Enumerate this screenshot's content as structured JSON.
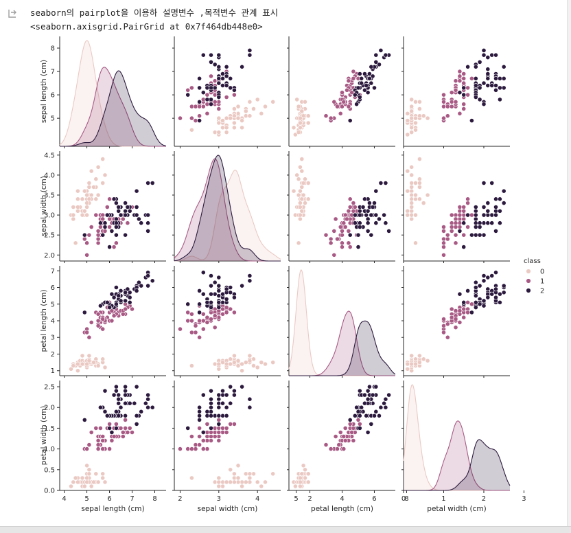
{
  "output": {
    "line1": "seaborn의 pairplot을 이용하 설명변수 ,목적변수 관계 표시",
    "line2": "<seaborn.axisgrid.PairGrid at 0x7f464db448e0>"
  },
  "chart_data": {
    "type": "scatter",
    "title": "",
    "variables": [
      "sepal length (cm)",
      "sepal width (cm)",
      "petal length (cm)",
      "petal width (cm)"
    ],
    "ranges": [
      [
        3.8,
        8.5
      ],
      [
        1.85,
        4.6
      ],
      [
        0.7,
        7.3
      ],
      [
        0.0,
        2.65
      ]
    ],
    "axis_ticks": [
      {
        "values": [
          4,
          5,
          6,
          7,
          8
        ],
        "labels": [
          "4",
          "5",
          "6",
          "7",
          "8"
        ]
      },
      {
        "values": [
          2,
          3,
          4,
          5
        ],
        "labels": [
          "2",
          "3",
          "4",
          "5"
        ]
      },
      {
        "values": [
          2,
          4,
          6,
          8
        ],
        "labels": [
          "2",
          "4",
          "6",
          "8"
        ]
      },
      {
        "values": [
          0,
          1,
          2,
          3
        ],
        "labels": [
          "0",
          "1",
          "2",
          "3"
        ]
      }
    ],
    "row_ticks": [
      {
        "values": [
          5,
          6,
          7,
          8
        ],
        "labels": [
          "5",
          "6",
          "7",
          "8"
        ]
      },
      {
        "values": [
          2.0,
          2.5,
          3.0,
          3.5,
          4.0,
          4.5
        ],
        "labels": [
          "2.0",
          "2.5",
          "3.0",
          "3.5",
          "4.0",
          "4.5"
        ]
      },
      {
        "values": [
          1,
          2,
          3,
          4,
          5,
          6,
          7
        ],
        "labels": [
          "1",
          "2",
          "3",
          "4",
          "5",
          "6",
          "7"
        ]
      },
      {
        "values": [
          0.0,
          0.5,
          1.0,
          1.5,
          2.0,
          2.5
        ],
        "labels": [
          "0.0",
          "0.5",
          "1.0",
          "1.5",
          "2.0",
          "2.5"
        ]
      }
    ],
    "legend": {
      "title": "class",
      "entries": [
        "0",
        "1",
        "2"
      ],
      "position": "right"
    },
    "colors": {
      "0": "#ebc9c3",
      "1": "#a85a85",
      "2": "#2c1a3e"
    },
    "fill_opacity": 0.22,
    "kde_bandwidth": [
      0.26,
      0.14,
      0.28,
      0.12
    ],
    "series": [
      {
        "name": "0",
        "points": [
          [
            5.1,
            3.5,
            1.4,
            0.2
          ],
          [
            4.9,
            3.0,
            1.4,
            0.2
          ],
          [
            4.7,
            3.2,
            1.3,
            0.2
          ],
          [
            4.6,
            3.1,
            1.5,
            0.2
          ],
          [
            5.0,
            3.6,
            1.4,
            0.2
          ],
          [
            5.4,
            3.9,
            1.7,
            0.4
          ],
          [
            4.6,
            3.4,
            1.4,
            0.3
          ],
          [
            5.0,
            3.4,
            1.5,
            0.2
          ],
          [
            4.4,
            2.9,
            1.4,
            0.2
          ],
          [
            4.9,
            3.1,
            1.5,
            0.1
          ],
          [
            5.4,
            3.7,
            1.5,
            0.2
          ],
          [
            4.8,
            3.4,
            1.6,
            0.2
          ],
          [
            4.8,
            3.0,
            1.4,
            0.1
          ],
          [
            4.3,
            3.0,
            1.1,
            0.1
          ],
          [
            5.8,
            4.0,
            1.2,
            0.2
          ],
          [
            5.7,
            4.4,
            1.5,
            0.4
          ],
          [
            5.4,
            3.9,
            1.3,
            0.4
          ],
          [
            5.1,
            3.5,
            1.4,
            0.3
          ],
          [
            5.7,
            3.8,
            1.7,
            0.3
          ],
          [
            5.1,
            3.8,
            1.5,
            0.3
          ],
          [
            5.4,
            3.4,
            1.7,
            0.2
          ],
          [
            5.1,
            3.7,
            1.5,
            0.4
          ],
          [
            4.6,
            3.6,
            1.0,
            0.2
          ],
          [
            5.1,
            3.3,
            1.7,
            0.5
          ],
          [
            4.8,
            3.4,
            1.9,
            0.2
          ],
          [
            5.0,
            3.0,
            1.6,
            0.2
          ],
          [
            5.0,
            3.4,
            1.6,
            0.4
          ],
          [
            5.2,
            3.5,
            1.5,
            0.2
          ],
          [
            5.2,
            3.4,
            1.4,
            0.2
          ],
          [
            4.7,
            3.2,
            1.6,
            0.2
          ],
          [
            4.8,
            3.1,
            1.6,
            0.2
          ],
          [
            5.4,
            3.4,
            1.5,
            0.4
          ],
          [
            5.2,
            4.1,
            1.5,
            0.1
          ],
          [
            5.5,
            4.2,
            1.4,
            0.2
          ],
          [
            4.9,
            3.1,
            1.5,
            0.2
          ],
          [
            5.0,
            3.2,
            1.2,
            0.2
          ],
          [
            5.5,
            3.5,
            1.3,
            0.2
          ],
          [
            4.9,
            3.6,
            1.4,
            0.1
          ],
          [
            4.4,
            3.0,
            1.3,
            0.2
          ],
          [
            5.1,
            3.4,
            1.5,
            0.2
          ],
          [
            5.0,
            3.5,
            1.3,
            0.3
          ],
          [
            4.5,
            2.3,
            1.3,
            0.3
          ],
          [
            4.4,
            3.2,
            1.3,
            0.2
          ],
          [
            5.0,
            3.5,
            1.6,
            0.6
          ],
          [
            5.1,
            3.8,
            1.9,
            0.4
          ],
          [
            4.8,
            3.0,
            1.4,
            0.3
          ],
          [
            5.1,
            3.8,
            1.6,
            0.2
          ],
          [
            4.6,
            3.2,
            1.4,
            0.2
          ],
          [
            5.3,
            3.7,
            1.5,
            0.2
          ],
          [
            5.0,
            3.3,
            1.4,
            0.2
          ]
        ]
      },
      {
        "name": "1",
        "points": [
          [
            7.0,
            3.2,
            4.7,
            1.4
          ],
          [
            6.4,
            3.2,
            4.5,
            1.5
          ],
          [
            6.9,
            3.1,
            4.9,
            1.5
          ],
          [
            5.5,
            2.3,
            4.0,
            1.3
          ],
          [
            6.5,
            2.8,
            4.6,
            1.5
          ],
          [
            5.7,
            2.8,
            4.5,
            1.3
          ],
          [
            6.3,
            3.3,
            4.7,
            1.6
          ],
          [
            4.9,
            2.4,
            3.3,
            1.0
          ],
          [
            6.6,
            2.9,
            4.6,
            1.3
          ],
          [
            5.2,
            2.7,
            3.9,
            1.4
          ],
          [
            5.0,
            2.0,
            3.5,
            1.0
          ],
          [
            5.9,
            3.0,
            4.2,
            1.5
          ],
          [
            6.0,
            2.2,
            4.0,
            1.0
          ],
          [
            6.1,
            2.9,
            4.7,
            1.4
          ],
          [
            5.6,
            2.9,
            3.6,
            1.3
          ],
          [
            6.7,
            3.1,
            4.4,
            1.4
          ],
          [
            5.6,
            3.0,
            4.5,
            1.5
          ],
          [
            5.8,
            2.7,
            4.1,
            1.0
          ],
          [
            6.2,
            2.2,
            4.5,
            1.5
          ],
          [
            5.6,
            2.5,
            3.9,
            1.1
          ],
          [
            5.9,
            3.2,
            4.8,
            1.8
          ],
          [
            6.1,
            2.8,
            4.0,
            1.3
          ],
          [
            6.3,
            2.5,
            4.9,
            1.5
          ],
          [
            6.1,
            2.8,
            4.7,
            1.2
          ],
          [
            6.4,
            2.9,
            4.3,
            1.3
          ],
          [
            6.6,
            3.0,
            4.4,
            1.4
          ],
          [
            6.8,
            2.8,
            4.8,
            1.4
          ],
          [
            6.7,
            3.0,
            5.0,
            1.7
          ],
          [
            6.0,
            2.9,
            4.5,
            1.5
          ],
          [
            5.7,
            2.6,
            3.5,
            1.0
          ],
          [
            5.5,
            2.4,
            3.8,
            1.1
          ],
          [
            5.5,
            2.4,
            3.7,
            1.0
          ],
          [
            5.8,
            2.7,
            3.9,
            1.2
          ],
          [
            6.0,
            2.7,
            5.1,
            1.6
          ],
          [
            5.4,
            3.0,
            4.5,
            1.5
          ],
          [
            6.0,
            3.4,
            4.5,
            1.6
          ],
          [
            6.7,
            3.1,
            4.7,
            1.5
          ],
          [
            6.3,
            2.3,
            4.4,
            1.3
          ],
          [
            5.6,
            3.0,
            4.1,
            1.3
          ],
          [
            5.5,
            2.5,
            4.0,
            1.3
          ],
          [
            5.5,
            2.6,
            4.4,
            1.2
          ],
          [
            6.1,
            3.0,
            4.6,
            1.4
          ],
          [
            5.8,
            2.6,
            4.0,
            1.2
          ],
          [
            5.0,
            2.3,
            3.3,
            1.0
          ],
          [
            5.6,
            2.7,
            4.2,
            1.3
          ],
          [
            5.7,
            3.0,
            4.2,
            1.2
          ],
          [
            5.7,
            2.9,
            4.2,
            1.3
          ],
          [
            6.2,
            2.9,
            4.3,
            1.3
          ],
          [
            5.1,
            2.5,
            3.0,
            1.1
          ],
          [
            5.7,
            2.8,
            4.1,
            1.3
          ]
        ]
      },
      {
        "name": "2",
        "points": [
          [
            6.3,
            3.3,
            6.0,
            2.5
          ],
          [
            5.8,
            2.7,
            5.1,
            1.9
          ],
          [
            7.1,
            3.0,
            5.9,
            2.1
          ],
          [
            6.3,
            2.9,
            5.6,
            1.8
          ],
          [
            6.5,
            3.0,
            5.8,
            2.2
          ],
          [
            7.6,
            3.0,
            6.6,
            2.1
          ],
          [
            4.9,
            2.5,
            4.5,
            1.7
          ],
          [
            7.3,
            2.9,
            6.3,
            1.8
          ],
          [
            6.7,
            2.5,
            5.8,
            1.8
          ],
          [
            7.2,
            3.6,
            6.1,
            2.5
          ],
          [
            6.5,
            3.2,
            5.1,
            2.0
          ],
          [
            6.4,
            2.7,
            5.3,
            1.9
          ],
          [
            6.8,
            3.0,
            5.5,
            2.1
          ],
          [
            5.7,
            2.5,
            5.0,
            2.0
          ],
          [
            5.8,
            2.8,
            5.1,
            2.4
          ],
          [
            6.4,
            3.2,
            5.3,
            2.3
          ],
          [
            6.5,
            3.0,
            5.5,
            1.8
          ],
          [
            7.7,
            3.8,
            6.7,
            2.2
          ],
          [
            7.7,
            2.6,
            6.9,
            2.3
          ],
          [
            6.0,
            2.2,
            5.0,
            1.5
          ],
          [
            6.9,
            3.2,
            5.7,
            2.3
          ],
          [
            5.6,
            2.8,
            4.9,
            2.0
          ],
          [
            7.7,
            2.8,
            6.7,
            2.0
          ],
          [
            6.3,
            2.7,
            4.9,
            1.8
          ],
          [
            6.7,
            3.3,
            5.7,
            2.1
          ],
          [
            7.2,
            3.2,
            6.0,
            1.8
          ],
          [
            6.2,
            2.8,
            4.8,
            1.8
          ],
          [
            6.1,
            3.0,
            4.9,
            1.8
          ],
          [
            6.4,
            2.8,
            5.6,
            2.1
          ],
          [
            7.2,
            3.0,
            5.8,
            1.6
          ],
          [
            7.4,
            2.8,
            6.1,
            1.9
          ],
          [
            7.9,
            3.8,
            6.4,
            2.0
          ],
          [
            6.4,
            2.8,
            5.6,
            2.2
          ],
          [
            6.3,
            2.8,
            5.1,
            1.5
          ],
          [
            6.1,
            2.6,
            5.6,
            1.4
          ],
          [
            7.7,
            3.0,
            6.1,
            2.3
          ],
          [
            6.3,
            3.4,
            5.6,
            2.4
          ],
          [
            6.4,
            3.1,
            5.5,
            1.8
          ],
          [
            6.0,
            3.0,
            4.8,
            1.8
          ],
          [
            6.9,
            3.1,
            5.4,
            2.1
          ],
          [
            6.7,
            3.1,
            5.6,
            2.4
          ],
          [
            6.9,
            3.1,
            5.1,
            2.3
          ],
          [
            5.8,
            2.7,
            5.1,
            1.9
          ],
          [
            6.8,
            3.2,
            5.9,
            2.3
          ],
          [
            6.7,
            3.3,
            5.7,
            2.5
          ],
          [
            6.7,
            3.0,
            5.2,
            2.3
          ],
          [
            6.3,
            2.5,
            5.0,
            1.9
          ],
          [
            6.5,
            3.0,
            5.2,
            2.0
          ],
          [
            6.2,
            3.4,
            5.4,
            2.3
          ],
          [
            5.9,
            3.0,
            5.1,
            1.8
          ]
        ]
      }
    ]
  }
}
